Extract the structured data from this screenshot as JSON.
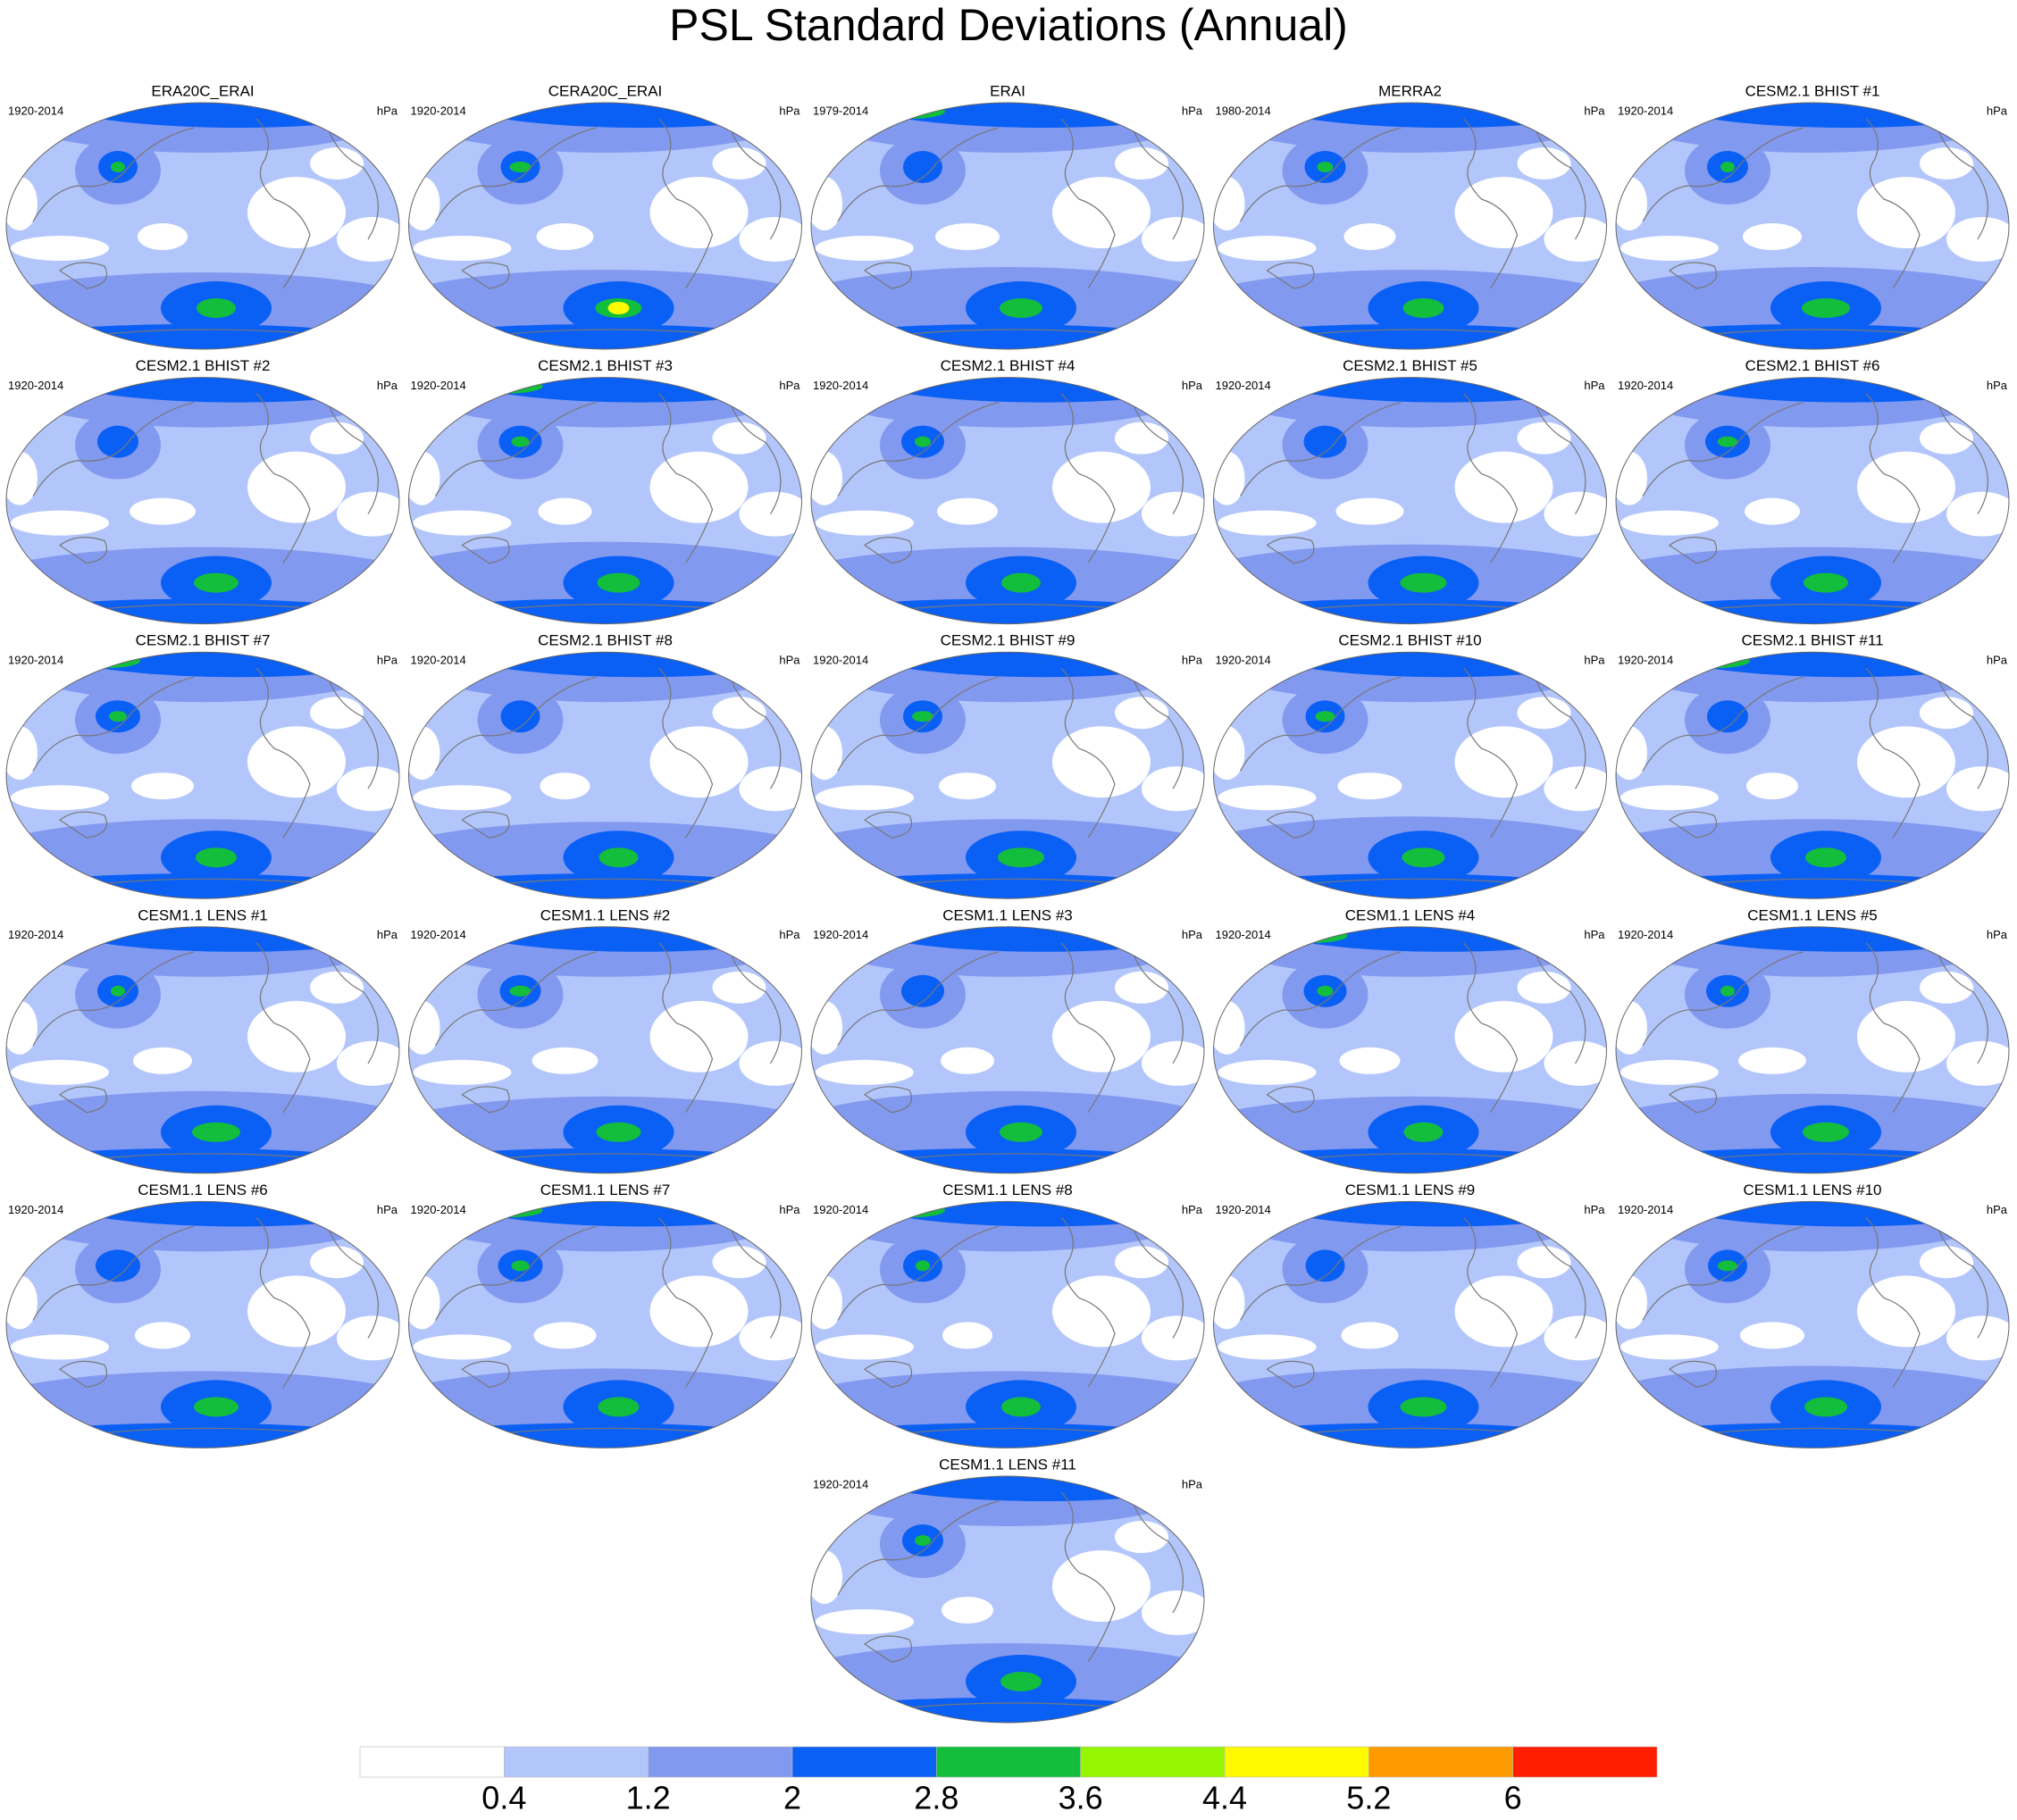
{
  "title": "PSL Standard Deviations (Annual)",
  "units": "hPa",
  "panels": [
    {
      "title": "ERA20C_ERAI",
      "period": "1920-2014"
    },
    {
      "title": "CERA20C_ERAI",
      "period": "1920-2014"
    },
    {
      "title": "ERAI",
      "period": "1979-2014"
    },
    {
      "title": "MERRA2",
      "period": "1980-2014"
    },
    {
      "title": "CESM2.1 BHIST #1",
      "period": "1920-2014"
    },
    {
      "title": "CESM2.1 BHIST #2",
      "period": "1920-2014"
    },
    {
      "title": "CESM2.1 BHIST #3",
      "period": "1920-2014"
    },
    {
      "title": "CESM2.1 BHIST #4",
      "period": "1920-2014"
    },
    {
      "title": "CESM2.1 BHIST #5",
      "period": "1920-2014"
    },
    {
      "title": "CESM2.1 BHIST #6",
      "period": "1920-2014"
    },
    {
      "title": "CESM2.1 BHIST #7",
      "period": "1920-2014"
    },
    {
      "title": "CESM2.1 BHIST #8",
      "period": "1920-2014"
    },
    {
      "title": "CESM2.1 BHIST #9",
      "period": "1920-2014"
    },
    {
      "title": "CESM2.1 BHIST #10",
      "period": "1920-2014"
    },
    {
      "title": "CESM2.1 BHIST #11",
      "period": "1920-2014"
    },
    {
      "title": "CESM1.1 LENS #1",
      "period": "1920-2014"
    },
    {
      "title": "CESM1.1 LENS #2",
      "period": "1920-2014"
    },
    {
      "title": "CESM1.1 LENS #3",
      "period": "1920-2014"
    },
    {
      "title": "CESM1.1 LENS #4",
      "period": "1920-2014"
    },
    {
      "title": "CESM1.1 LENS #5",
      "period": "1920-2014"
    },
    {
      "title": "CESM1.1 LENS #6",
      "period": "1920-2014"
    },
    {
      "title": "CESM1.1 LENS #7",
      "period": "1920-2014"
    },
    {
      "title": "CESM1.1 LENS #8",
      "period": "1920-2014"
    },
    {
      "title": "CESM1.1 LENS #9",
      "period": "1920-2014"
    },
    {
      "title": "CESM1.1 LENS #10",
      "period": "1920-2014"
    },
    {
      "title": "CESM1.1 LENS #11",
      "period": "1920-2014"
    }
  ],
  "colorbar": {
    "levels": [
      0.4,
      1.2,
      2,
      2.8,
      3.6,
      4.4,
      5.2,
      6
    ],
    "colors": [
      "#ffffff",
      "#b3c6fb",
      "#8299f0",
      "#0a5ff5",
      "#12be3c",
      "#96f500",
      "#fffa00",
      "#ff9b00",
      "#ff1e00"
    ]
  }
}
